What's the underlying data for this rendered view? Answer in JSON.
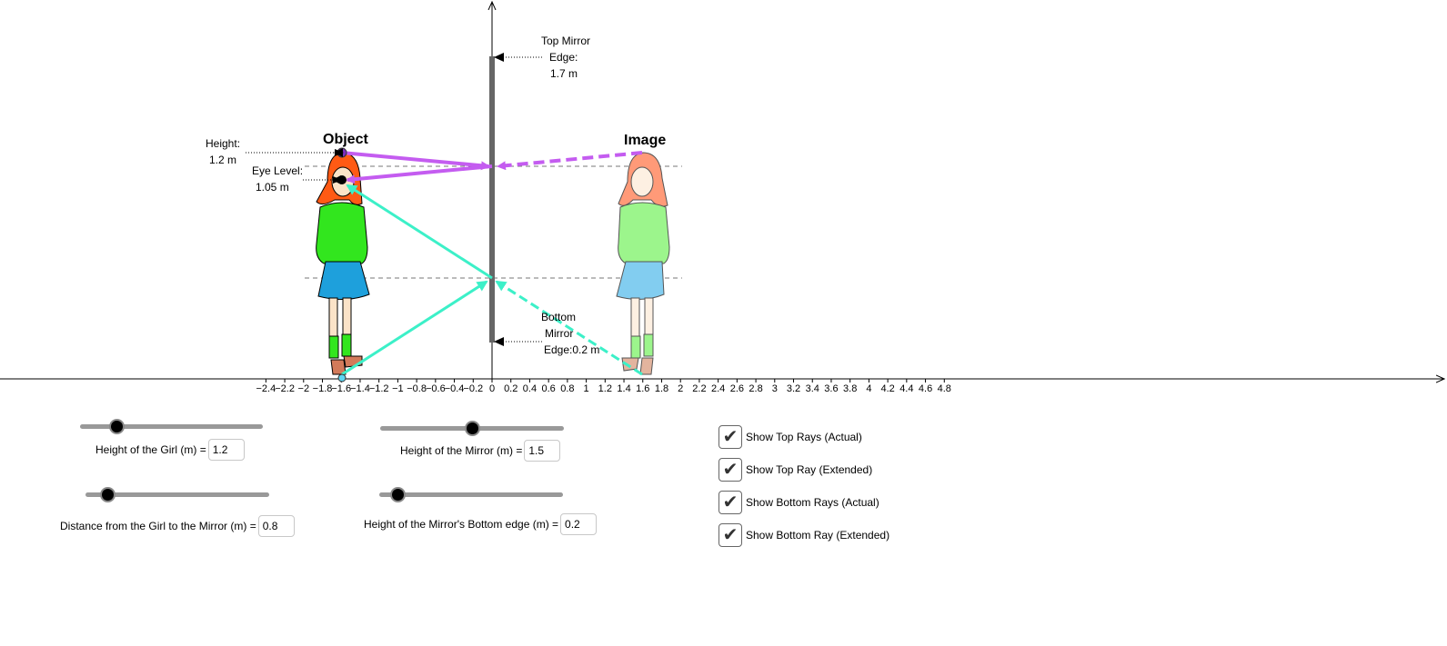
{
  "axis": {
    "tick_labels": [
      "−2.4",
      "−2.2",
      "−2",
      "−1.8",
      "−1.6",
      "−1.4",
      "−1.2",
      "−1",
      "−0.8",
      "−0.6",
      "−0.4",
      "−0.2",
      "0",
      "0.2",
      "0.4",
      "0.6",
      "0.8",
      "1",
      "1.2",
      "1.4",
      "1.6",
      "1.8",
      "2",
      "2.2",
      "2.4",
      "2.6",
      "2.8",
      "3",
      "3.2",
      "3.4",
      "3.6",
      "3.8",
      "4",
      "4.2",
      "4.4",
      "4.6",
      "4.8"
    ]
  },
  "labels": {
    "object": "Object",
    "image": "Image",
    "height_line1": "Height:",
    "height_line2": "1.2 m",
    "eye_line1": "Eye Level:",
    "eye_line2": "1.05 m",
    "top_mirror_line1": "Top Mirror",
    "top_mirror_line2": "Edge:",
    "top_mirror_line3": "1.7 m",
    "bottom_mirror_line1": "Bottom",
    "bottom_mirror_line2": "Mirror",
    "bottom_mirror_line3": "Edge:0.2 m"
  },
  "controls": {
    "girl_height": {
      "label": "Height of the Girl (m) = ",
      "value": "1.2",
      "slider_fraction": 0.2
    },
    "distance": {
      "label": "Distance from the Girl to the Mirror (m) = ",
      "value": "0.8",
      "slider_fraction": 0.12
    },
    "mirror_height": {
      "label": "Height of the Mirror (m) = ",
      "value": "1.5",
      "slider_fraction": 0.5
    },
    "mirror_bottom": {
      "label": "Height of the Mirror's Bottom edge (m) = ",
      "value": "0.2",
      "slider_fraction": 0.1
    }
  },
  "checkboxes": [
    {
      "label": "Show Top Rays (Actual)",
      "checked": true
    },
    {
      "label": "Show Top Ray (Extended)",
      "checked": true
    },
    {
      "label": "Show Bottom Rays (Actual)",
      "checked": true
    },
    {
      "label": "Show Bottom Ray (Extended)",
      "checked": true
    }
  ],
  "colors": {
    "top_ray": "#c45cf0",
    "bottom_ray": "#3cf0c8",
    "mirror": "#666666",
    "girl_hair": "#ff5a14",
    "girl_shirt": "#32e61e",
    "girl_skirt": "#1ea0dc",
    "image_hair": "#ff9a78",
    "image_shirt": "#9cf58c",
    "image_skirt": "#82cdf0"
  }
}
